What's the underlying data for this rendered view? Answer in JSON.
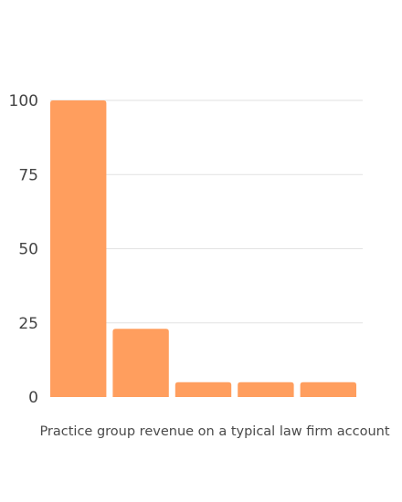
{
  "chart_data": {
    "type": "bar",
    "categories": [
      "",
      "",
      "",
      "",
      ""
    ],
    "values": [
      100,
      23,
      5,
      5,
      5
    ],
    "title": "",
    "xlabel": "Practice group revenue on a typical law firm account",
    "ylabel": "",
    "ylim": [
      0,
      100
    ],
    "yticks": [
      0,
      25,
      50,
      75,
      100
    ],
    "ytick_labels": [
      "0",
      "25",
      "50",
      "75",
      "100"
    ],
    "grid": "horizontal",
    "bar_color": "#FF9E5E",
    "grid_color": "#E2E2E2"
  }
}
